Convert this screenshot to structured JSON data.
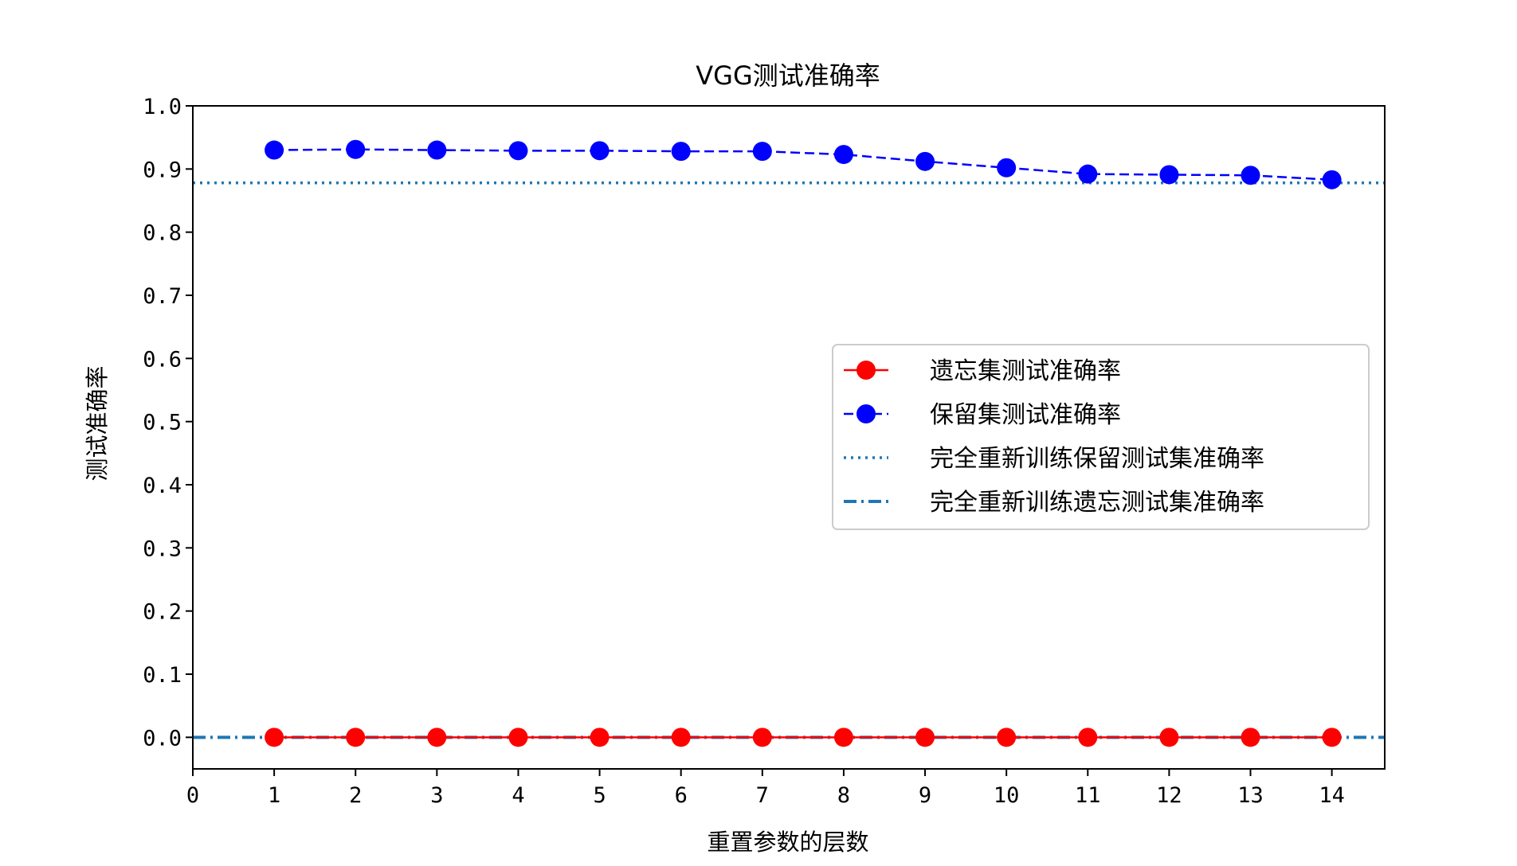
{
  "chart_data": {
    "type": "line",
    "title": "VGG测试准确率",
    "xlabel": "重置参数的层数",
    "ylabel": "测试准确率",
    "xlim": [
      0,
      14.65
    ],
    "ylim": [
      -0.05,
      1.0
    ],
    "xticks": [
      0,
      1,
      2,
      3,
      4,
      5,
      6,
      7,
      8,
      9,
      10,
      11,
      12,
      13,
      14
    ],
    "yticks": [
      "0.0",
      "0.1",
      "0.2",
      "0.3",
      "0.4",
      "0.5",
      "0.6",
      "0.7",
      "0.8",
      "0.9",
      "1.0"
    ],
    "x": [
      1,
      2,
      3,
      4,
      5,
      6,
      7,
      8,
      9,
      10,
      11,
      12,
      13,
      14
    ],
    "series": [
      {
        "name": "遗忘集测试准确率",
        "color": "#ff0000",
        "style": "solid-marker",
        "values": [
          0,
          0,
          0,
          0,
          0,
          0,
          0,
          0,
          0,
          0,
          0,
          0,
          0,
          0
        ]
      },
      {
        "name": "保留集测试准确率",
        "color": "#0000ff",
        "style": "dashed-marker",
        "values": [
          0.93,
          0.931,
          0.93,
          0.929,
          0.929,
          0.928,
          0.928,
          0.923,
          0.912,
          0.902,
          0.892,
          0.891,
          0.89,
          0.883
        ]
      }
    ],
    "reference_lines": [
      {
        "name": "完全重新训练保留测试集准确率",
        "color": "#1f77b4",
        "style": "dotted",
        "y": 0.878
      },
      {
        "name": "完全重新训练遗忘测试集准确率",
        "color": "#1f77b4",
        "style": "dashdot",
        "y": 0.0
      }
    ],
    "legend_position": "center-right",
    "grid": false
  }
}
